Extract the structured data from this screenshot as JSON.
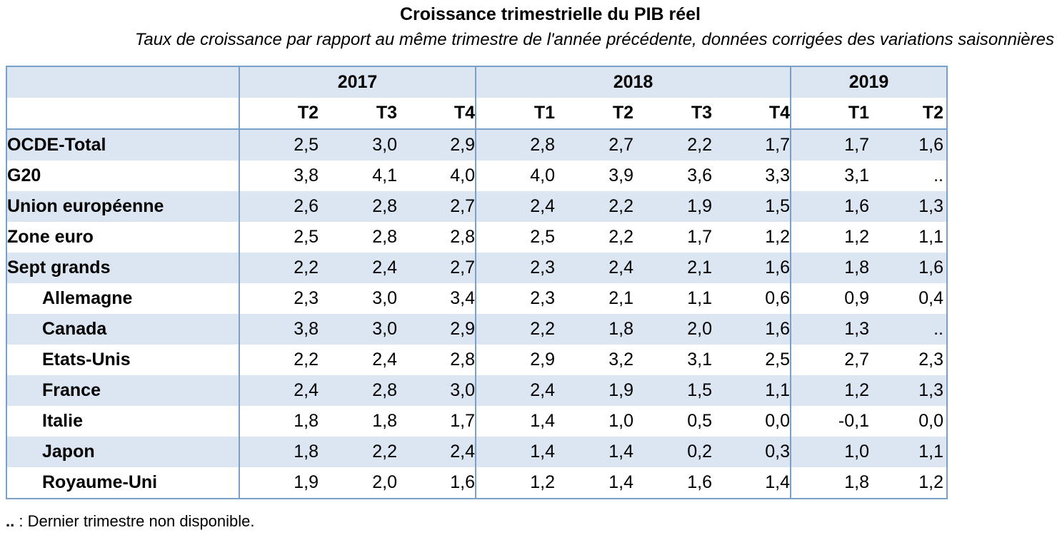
{
  "title": "Croissance trimestrielle du PIB réel",
  "subtitle": "Taux de croissance par rapport au même trimestre de l'année précédente, données corrigées des variations saisonnières",
  "chart_data": {
    "type": "table",
    "years": [
      {
        "label": "2017",
        "span": 3
      },
      {
        "label": "2018",
        "span": 4
      },
      {
        "label": "2019",
        "span": 2
      }
    ],
    "quarters": [
      "T2",
      "T3",
      "T4",
      "T1",
      "T2",
      "T3",
      "T4",
      "T1",
      "T2"
    ],
    "rows": [
      {
        "label": "OCDE-Total",
        "indent": false,
        "values": [
          "2,5",
          "3,0",
          "2,9",
          "2,8",
          "2,7",
          "2,2",
          "1,7",
          "1,7",
          "1,6"
        ]
      },
      {
        "label": "G20",
        "indent": false,
        "values": [
          "3,8",
          "4,1",
          "4,0",
          "4,0",
          "3,9",
          "3,6",
          "3,3",
          "3,1",
          ".."
        ]
      },
      {
        "label": "Union européenne",
        "indent": false,
        "values": [
          "2,6",
          "2,8",
          "2,7",
          "2,4",
          "2,2",
          "1,9",
          "1,5",
          "1,6",
          "1,3"
        ]
      },
      {
        "label": "Zone euro",
        "indent": false,
        "values": [
          "2,5",
          "2,8",
          "2,8",
          "2,5",
          "2,2",
          "1,7",
          "1,2",
          "1,2",
          "1,1"
        ]
      },
      {
        "label": "Sept grands",
        "indent": false,
        "values": [
          "2,2",
          "2,4",
          "2,7",
          "2,3",
          "2,4",
          "2,1",
          "1,6",
          "1,8",
          "1,6"
        ]
      },
      {
        "label": "Allemagne",
        "indent": true,
        "values": [
          "2,3",
          "3,0",
          "3,4",
          "2,3",
          "2,1",
          "1,1",
          "0,6",
          "0,9",
          "0,4"
        ]
      },
      {
        "label": "Canada",
        "indent": true,
        "values": [
          "3,8",
          "3,0",
          "2,9",
          "2,2",
          "1,8",
          "2,0",
          "1,6",
          "1,3",
          ".."
        ]
      },
      {
        "label": "Etats-Unis",
        "indent": true,
        "values": [
          "2,2",
          "2,4",
          "2,8",
          "2,9",
          "3,2",
          "3,1",
          "2,5",
          "2,7",
          "2,3"
        ]
      },
      {
        "label": "France",
        "indent": true,
        "values": [
          "2,4",
          "2,8",
          "3,0",
          "2,4",
          "1,9",
          "1,5",
          "1,1",
          "1,2",
          "1,3"
        ]
      },
      {
        "label": "Italie",
        "indent": true,
        "values": [
          "1,8",
          "1,8",
          "1,7",
          "1,4",
          "1,0",
          "0,5",
          "0,0",
          "-0,1",
          "0,0"
        ]
      },
      {
        "label": "Japon",
        "indent": true,
        "values": [
          "1,8",
          "2,2",
          "2,4",
          "1,4",
          "1,4",
          "0,2",
          "0,3",
          "1,0",
          "1,1"
        ]
      },
      {
        "label": "Royaume-Uni",
        "indent": true,
        "values": [
          "1,9",
          "2,0",
          "1,6",
          "1,2",
          "1,4",
          "1,6",
          "1,4",
          "1,8",
          "1,2"
        ]
      }
    ]
  },
  "footnote": {
    "symbol": "..",
    "separator": " : ",
    "text": "Dernier trimestre non disponible."
  },
  "colors": {
    "border": "#7aa0c8",
    "shade": "#dce6f2"
  }
}
